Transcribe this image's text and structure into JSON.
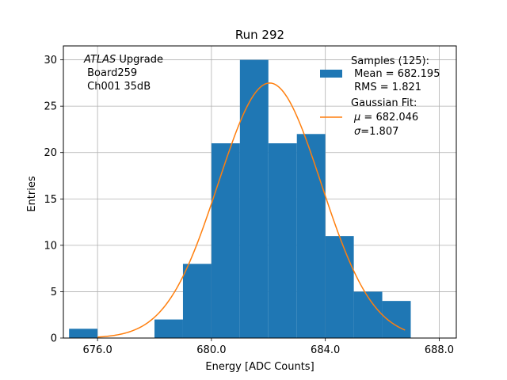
{
  "chart_data": {
    "type": "bar",
    "title": "Run 292",
    "xlabel": "Energy [ADC Counts]",
    "ylabel": "Entries",
    "xlim": [
      674.8,
      688.6
    ],
    "ylim": [
      0,
      31.5
    ],
    "xticks": [
      676.0,
      680.0,
      684.0,
      688.0
    ],
    "xtick_labels": [
      "676.0",
      "680.0",
      "684.0",
      "688.0"
    ],
    "yticks": [
      0,
      5,
      10,
      15,
      20,
      25,
      30
    ],
    "ytick_labels": [
      "0",
      "5",
      "10",
      "15",
      "20",
      "25",
      "30"
    ],
    "grid": true,
    "histogram": {
      "color": "#1f77b4",
      "bins": [
        {
          "x0": 675.0,
          "x1": 676.0,
          "count": 1
        },
        {
          "x0": 676.0,
          "x1": 677.0,
          "count": 0
        },
        {
          "x0": 677.0,
          "x1": 678.0,
          "count": 0
        },
        {
          "x0": 678.0,
          "x1": 679.0,
          "count": 2
        },
        {
          "x0": 679.0,
          "x1": 680.0,
          "count": 8
        },
        {
          "x0": 680.0,
          "x1": 681.0,
          "count": 21
        },
        {
          "x0": 681.0,
          "x1": 682.0,
          "count": 30
        },
        {
          "x0": 682.0,
          "x1": 683.0,
          "count": 21
        },
        {
          "x0": 683.0,
          "x1": 684.0,
          "count": 22
        },
        {
          "x0": 684.0,
          "x1": 685.0,
          "count": 11
        },
        {
          "x0": 685.0,
          "x1": 686.0,
          "count": 5
        },
        {
          "x0": 686.0,
          "x1": 687.0,
          "count": 4
        }
      ]
    },
    "fit": {
      "color": "#ff7f0e",
      "type": "gaussian",
      "mu": 682.046,
      "sigma": 1.807,
      "amplitude": 27.5,
      "x_range": [
        676.0,
        686.8
      ]
    },
    "annotation": {
      "line1_italic": "ATLAS",
      "line1_rest": " Upgrade",
      "line2": " Board259",
      "line3": " Ch001 35dB"
    },
    "legend": {
      "placement": "top-right",
      "samples": {
        "line1": "Samples (125):",
        "line2": " Mean = 682.195",
        "line3": " RMS = 1.821"
      },
      "fit": {
        "line1": "Gaussian Fit:",
        "line2_sym": "μ",
        "line2_rest": " = 682.046",
        "line3_sym": "σ",
        "line3_rest": "=1.807"
      }
    }
  }
}
